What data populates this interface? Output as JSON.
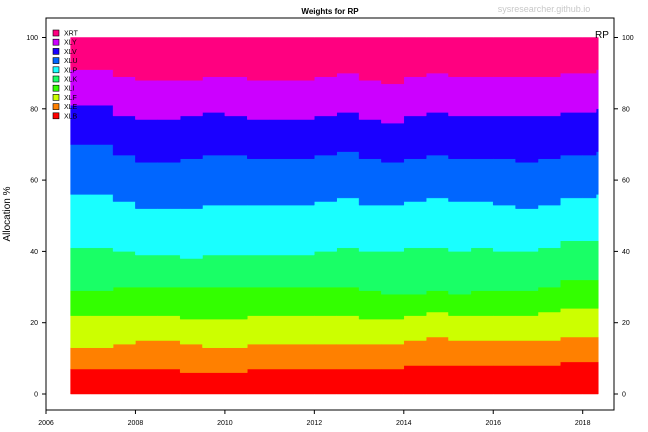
{
  "chart_data": {
    "type": "area",
    "stacked": true,
    "title": "Weights for RP",
    "watermark": "sysresearcher.github.io",
    "corner_label": "RP",
    "ylabel": "Allocation %",
    "xlabel": "",
    "xlim": [
      2006,
      2018.7
    ],
    "ylim": [
      0,
      100
    ],
    "x_ticks": [
      "2006",
      "2008",
      "2010",
      "2012",
      "2014",
      "2016",
      "2018"
    ],
    "y_ticks": [
      "0",
      "20",
      "40",
      "60",
      "80",
      "100"
    ],
    "grid": false,
    "legend_position": "top-left",
    "legend": [
      "XRT",
      "XLY",
      "XLV",
      "XLU",
      "XLP",
      "XLK",
      "XLI",
      "XLF",
      "XLE",
      "XLB"
    ],
    "x": [
      2006.55,
      2007,
      2007.5,
      2008,
      2008.5,
      2009,
      2009.5,
      2010,
      2010.5,
      2011,
      2011.5,
      2012,
      2012.5,
      2013,
      2013.5,
      2014,
      2014.5,
      2015,
      2015.5,
      2016,
      2016.5,
      2017,
      2017.5,
      2018,
      2018.3
    ],
    "series": [
      {
        "name": "XLB",
        "color": "#ff0000",
        "values": [
          7,
          7,
          7,
          7,
          7,
          6,
          6,
          6,
          7,
          7,
          7,
          7,
          7,
          7,
          7,
          8,
          8,
          8,
          8,
          8,
          8,
          8,
          9,
          9,
          9
        ]
      },
      {
        "name": "XLE",
        "color": "#ff8000",
        "values": [
          6,
          6,
          7,
          8,
          8,
          8,
          7,
          7,
          7,
          7,
          7,
          7,
          7,
          7,
          7,
          7,
          8,
          7,
          7,
          7,
          7,
          7,
          7,
          7,
          7
        ]
      },
      {
        "name": "XLF",
        "color": "#ccff00",
        "values": [
          9,
          9,
          8,
          7,
          7,
          7,
          8,
          8,
          8,
          8,
          8,
          8,
          8,
          7,
          7,
          7,
          7,
          7,
          7,
          7,
          7,
          8,
          8,
          8,
          8
        ]
      },
      {
        "name": "XLI",
        "color": "#33ff00",
        "values": [
          7,
          7,
          8,
          8,
          8,
          9,
          9,
          9,
          8,
          8,
          8,
          8,
          8,
          8,
          7,
          6,
          6,
          6,
          7,
          7,
          7,
          7,
          8,
          8,
          8
        ]
      },
      {
        "name": "XLK",
        "color": "#19ff66",
        "values": [
          12,
          12,
          10,
          9,
          9,
          8,
          9,
          9,
          9,
          9,
          9,
          10,
          11,
          11,
          12,
          13,
          12,
          12,
          12,
          11,
          11,
          11,
          11,
          11,
          11
        ]
      },
      {
        "name": "XLP",
        "color": "#19ffff",
        "values": [
          15,
          15,
          14,
          13,
          13,
          14,
          14,
          14,
          14,
          14,
          14,
          14,
          14,
          13,
          13,
          13,
          14,
          14,
          13,
          13,
          12,
          12,
          12,
          12,
          13
        ]
      },
      {
        "name": "XLU",
        "color": "#0066ff",
        "values": [
          14,
          14,
          13,
          13,
          13,
          14,
          14,
          14,
          13,
          13,
          13,
          13,
          13,
          13,
          12,
          12,
          12,
          12,
          12,
          13,
          13,
          13,
          12,
          12,
          12
        ]
      },
      {
        "name": "XLV",
        "color": "#1a00ff",
        "values": [
          11,
          11,
          11,
          12,
          12,
          12,
          12,
          11,
          11,
          11,
          11,
          11,
          11,
          11,
          11,
          12,
          12,
          12,
          12,
          12,
          13,
          12,
          12,
          12,
          12
        ]
      },
      {
        "name": "XLY",
        "color": "#cc00ff",
        "values": [
          10,
          10,
          11,
          11,
          11,
          10,
          10,
          11,
          11,
          11,
          11,
          11,
          11,
          11,
          11,
          11,
          11,
          11,
          11,
          11,
          11,
          11,
          11,
          11,
          11
        ]
      },
      {
        "name": "XRT",
        "color": "#ff0080",
        "values": [
          9,
          9,
          11,
          12,
          12,
          12,
          11,
          11,
          12,
          12,
          12,
          11,
          10,
          12,
          13,
          11,
          10,
          11,
          11,
          11,
          11,
          11,
          10,
          10,
          9
        ]
      }
    ]
  }
}
